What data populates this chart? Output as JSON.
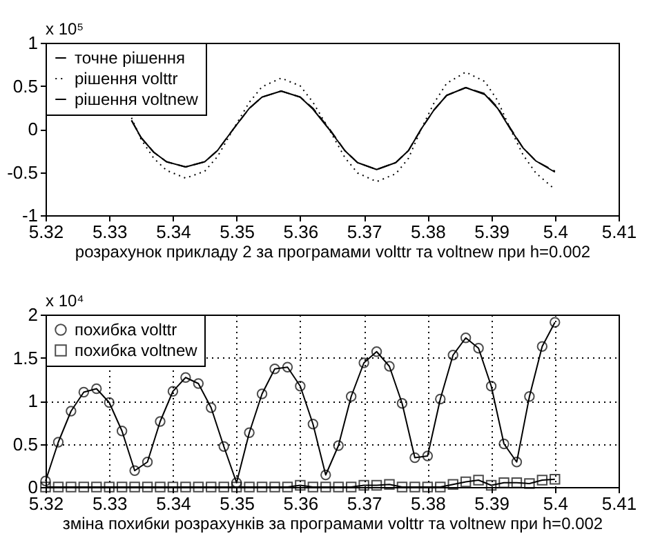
{
  "chart_data": [
    {
      "type": "line",
      "xlabel": "розрахунок прикладу 2 за програмами volttr та voltnew при h=0.002",
      "annotations": [
        "x 10⁵"
      ],
      "xlim": [
        5.32,
        5.41
      ],
      "xticks": [
        5.32,
        5.33,
        5.34,
        5.35,
        5.36,
        5.37,
        5.38,
        5.39,
        5.4,
        5.41
      ],
      "ylim": [
        -1,
        1
      ],
      "yticks": [
        -1,
        -0.5,
        0,
        0.5,
        1
      ],
      "grid": false,
      "legend": "top left",
      "x": [
        5.3335,
        5.335,
        5.337,
        5.339,
        5.342,
        5.345,
        5.347,
        5.3495,
        5.352,
        5.354,
        5.357,
        5.36,
        5.362,
        5.3645,
        5.367,
        5.369,
        5.372,
        5.375,
        5.377,
        5.379,
        5.381,
        5.383,
        5.386,
        5.389,
        5.391,
        5.393,
        5.395,
        5.397,
        5.4
      ],
      "series": [
        {
          "name": "точне рішення",
          "color": "#000000",
          "line_style": "solid",
          "values": [
            0.1,
            -0.1,
            -0.27,
            -0.38,
            -0.44,
            -0.38,
            -0.25,
            0.0,
            0.24,
            0.37,
            0.44,
            0.37,
            0.23,
            0.0,
            -0.25,
            -0.39,
            -0.47,
            -0.39,
            -0.25,
            0.0,
            0.22,
            0.39,
            0.48,
            0.4,
            0.24,
            0.0,
            -0.22,
            -0.37,
            -0.5
          ]
        },
        {
          "name": "рішення volttr",
          "color": "#000000",
          "line_style": "dotted",
          "values": [
            0.13,
            -0.12,
            -0.34,
            -0.48,
            -0.57,
            -0.49,
            -0.32,
            0.0,
            0.31,
            0.49,
            0.59,
            0.5,
            0.31,
            0.0,
            -0.33,
            -0.51,
            -0.61,
            -0.52,
            -0.34,
            0.0,
            0.3,
            0.53,
            0.66,
            0.55,
            0.33,
            0.0,
            -0.3,
            -0.51,
            -0.7
          ]
        },
        {
          "name": "рішення voltnew",
          "color": "#000000",
          "line_style": "dashed",
          "values": [
            0.1,
            -0.1,
            -0.27,
            -0.38,
            -0.44,
            -0.38,
            -0.25,
            0.0,
            0.24,
            0.37,
            0.44,
            0.37,
            0.24,
            0.01,
            -0.25,
            -0.39,
            -0.47,
            -0.39,
            -0.25,
            0.0,
            0.22,
            0.39,
            0.48,
            0.41,
            0.25,
            0.01,
            -0.22,
            -0.37,
            -0.49
          ]
        }
      ]
    },
    {
      "type": "line",
      "xlabel": "зміна похибки розрахунків за програмами volttr та voltnew при h=0.002",
      "annotations": [
        "x 10⁴"
      ],
      "xlim": [
        5.32,
        5.41
      ],
      "xticks": [
        5.32,
        5.33,
        5.34,
        5.35,
        5.36,
        5.37,
        5.38,
        5.39,
        5.4,
        5.41
      ],
      "ylim": [
        0,
        2
      ],
      "yticks": [
        0,
        0.5,
        1,
        1.5,
        2
      ],
      "grid": true,
      "legend": "top left",
      "x": [
        5.32,
        5.322,
        5.324,
        5.326,
        5.328,
        5.33,
        5.332,
        5.334,
        5.336,
        5.338,
        5.34,
        5.342,
        5.344,
        5.346,
        5.348,
        5.35,
        5.352,
        5.354,
        5.356,
        5.358,
        5.36,
        5.362,
        5.364,
        5.366,
        5.368,
        5.37,
        5.372,
        5.374,
        5.376,
        5.378,
        5.38,
        5.382,
        5.384,
        5.386,
        5.388,
        5.39,
        5.392,
        5.394,
        5.396,
        5.398,
        5.4
      ],
      "series": [
        {
          "name": "похибка volttr",
          "color": "#000000",
          "line_style": "solid",
          "marker": "circle",
          "values": [
            0.07,
            0.52,
            0.88,
            1.1,
            1.14,
            0.98,
            0.65,
            0.19,
            0.29,
            0.76,
            1.11,
            1.27,
            1.2,
            0.92,
            0.47,
            0.05,
            0.63,
            1.08,
            1.37,
            1.39,
            1.17,
            0.73,
            0.14,
            0.48,
            1.05,
            1.44,
            1.57,
            1.4,
            0.97,
            0.34,
            0.36,
            1.02,
            1.53,
            1.73,
            1.61,
            1.17,
            0.5,
            0.29,
            1.05,
            1.63,
            1.91
          ]
        },
        {
          "name": "похибка voltnew",
          "color": "#000000",
          "line_style": "solid",
          "marker": "square",
          "values": [
            0.0,
            0.0,
            0.0,
            0.0,
            0.0,
            0.0,
            0.0,
            0.0,
            0.0,
            0.0,
            0.0,
            0.0,
            0.0,
            0.0,
            0.0,
            0.0,
            0.0,
            0.0,
            0.0,
            0.0,
            0.02,
            0.0,
            0.0,
            0.0,
            0.0,
            0.02,
            0.02,
            0.03,
            0.0,
            0.0,
            0.0,
            0.0,
            0.03,
            0.06,
            0.08,
            0.02,
            0.05,
            0.05,
            0.04,
            0.08,
            0.09
          ]
        }
      ]
    }
  ]
}
